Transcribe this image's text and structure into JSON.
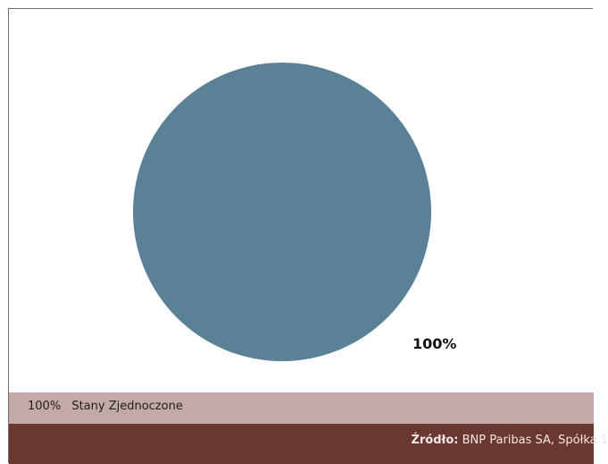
{
  "chart_data": {
    "type": "pie",
    "categories": [
      "Stany Zjednoczone"
    ],
    "values": [
      100
    ],
    "labels": [
      "100%"
    ],
    "colors": [
      "#5b8196"
    ],
    "legend": [
      "100%  Stany Zjednoczone"
    ],
    "legend_position": "bottom",
    "grid": false
  },
  "footer": {
    "source_label": "Źródło:",
    "source_text": "BNP Paribas SA, Spółka 1"
  },
  "colors": {
    "legend_background": "#c3aaa6",
    "footer_background": "#6b3731"
  }
}
